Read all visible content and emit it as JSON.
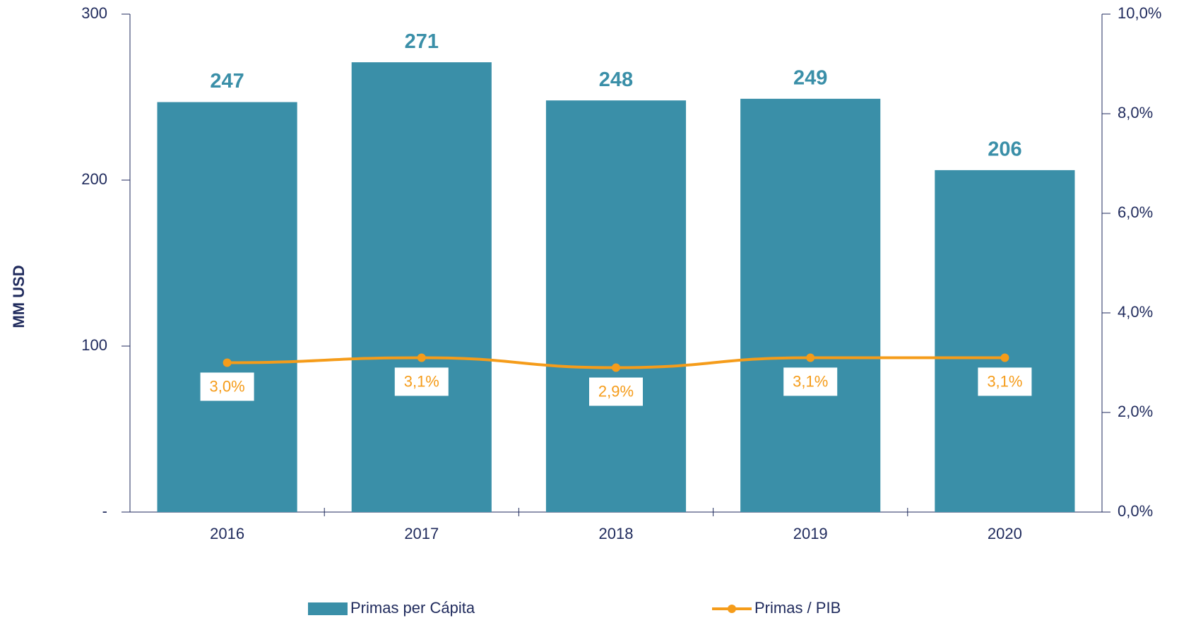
{
  "chart_data": {
    "type": "bar",
    "y_label": "MM USD",
    "categories": [
      "2016",
      "2017",
      "2018",
      "2019",
      "2020"
    ],
    "series": [
      {
        "name": "Primas per Cápita",
        "color": "#3a8fa8",
        "type": "bar",
        "values": [
          247,
          271,
          248,
          249,
          206
        ]
      },
      {
        "name": "Primas / PIB",
        "color": "#f59c1a",
        "type": "line",
        "axis": "y2",
        "values": [
          3.0,
          3.1,
          2.9,
          3.1,
          3.1
        ],
        "value_labels": [
          "3,0%",
          "3,1%",
          "2,9%",
          "3,1%",
          "3,1%"
        ]
      }
    ],
    "ylim": [
      0,
      300
    ],
    "yticks": [
      {
        "value": 0,
        "label": "-"
      },
      100,
      200,
      300
    ],
    "y2lim": [
      0,
      10
    ],
    "y2ticks": [
      {
        "value": 0,
        "label": "0,0%"
      },
      {
        "value": 2,
        "label": "2,0%"
      },
      {
        "value": 4,
        "label": "4,0%"
      },
      {
        "value": 6,
        "label": "6,0%"
      },
      {
        "value": 8,
        "label": "8,0%"
      },
      {
        "value": 10,
        "label": "10,0%"
      }
    ],
    "legend": "bottom"
  }
}
